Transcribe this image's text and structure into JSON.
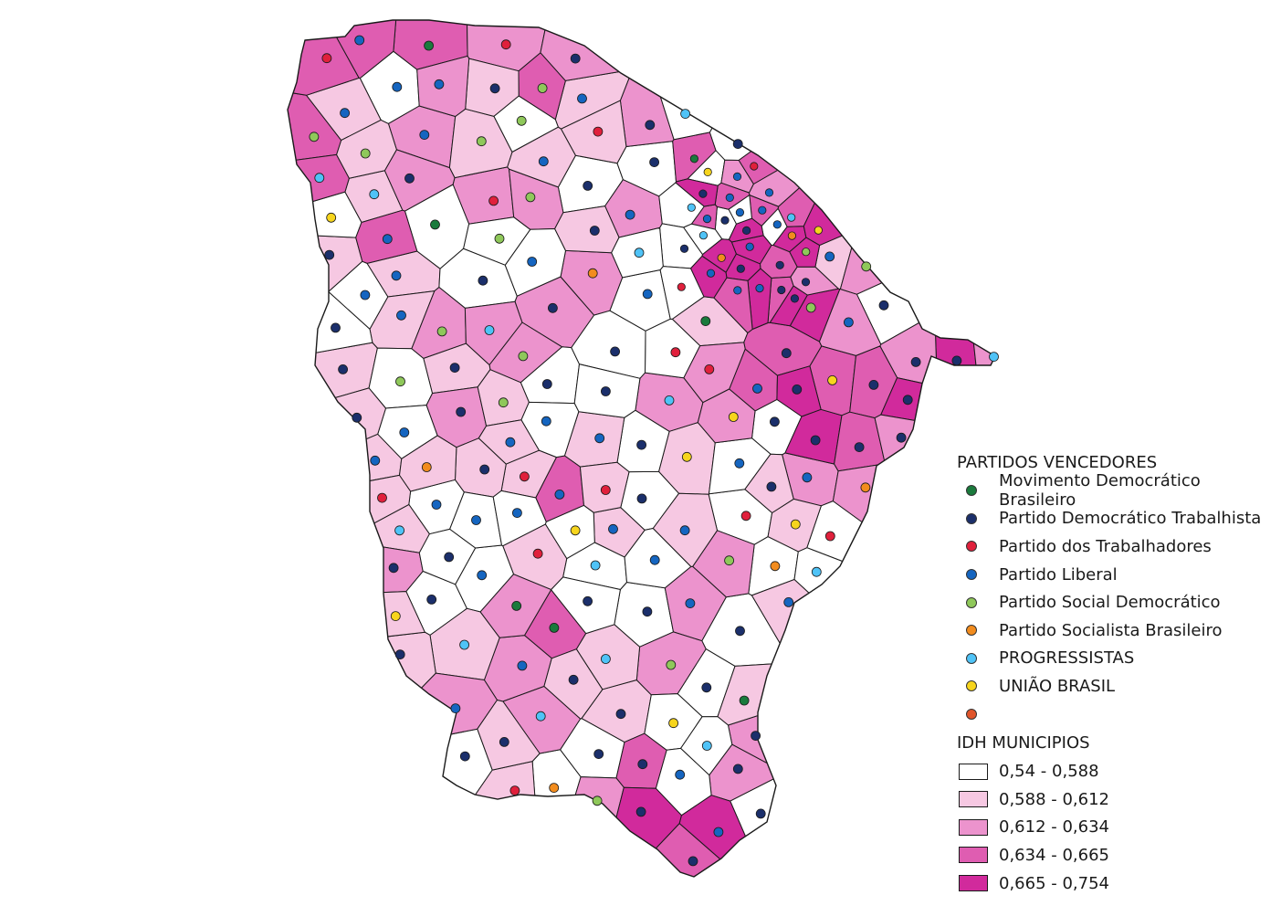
{
  "legend": {
    "parties_title": "PARTIDOS VENCEDORES",
    "parties": [
      {
        "label": "Movimento Democrático Brasileiro",
        "color": "#1a7a3c"
      },
      {
        "label": "Partido Democrático Trabalhista",
        "color": "#1b2f6b"
      },
      {
        "label": "Partido dos Trabalhadores",
        "color": "#e0203c"
      },
      {
        "label": "Partido Liberal",
        "color": "#1565c0"
      },
      {
        "label": "Partido Social Democrático",
        "color": "#8fc85a"
      },
      {
        "label": "Partido Socialista Brasileiro",
        "color": "#f28c1e"
      },
      {
        "label": "PROGRESSISTAS",
        "color": "#4fc3f7"
      },
      {
        "label": "UNIÃO BRASIL",
        "color": "#f7d51d"
      },
      {
        "label": "",
        "color": "#e0542a"
      }
    ],
    "idh_title": "IDH MUNICIPIOS",
    "idh_classes": [
      {
        "label": "0,54 - 0,588",
        "color": "#ffffff"
      },
      {
        "label": "0,588 - 0,612",
        "color": "#f6c8e2"
      },
      {
        "label": "0,612 - 0,634",
        "color": "#ec93cd"
      },
      {
        "label": "0,634 - 0,665",
        "color": "#df5db1"
      },
      {
        "label": "0,665 - 0,754",
        "color": "#d12a9c"
      }
    ]
  }
}
